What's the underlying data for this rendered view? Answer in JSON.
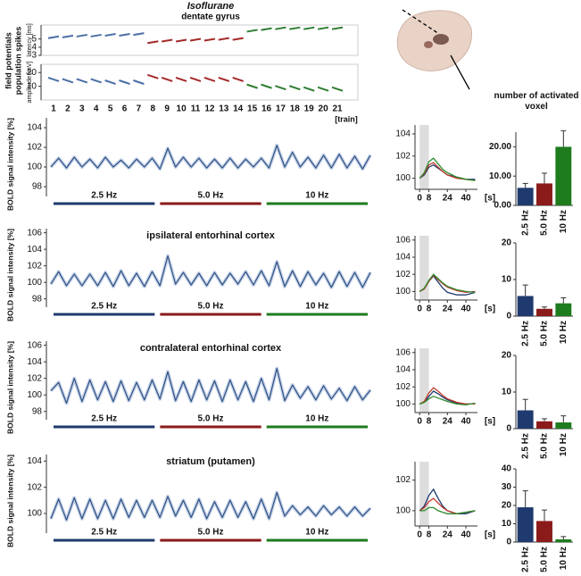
{
  "chart_data": [
    {
      "type": "ephys",
      "title": "Isoflurane",
      "subtitle": "dentate gyrus",
      "ylabel": [
        "field potentials",
        "population spikes"
      ],
      "xlabel": "[train]",
      "categories": [
        "1",
        "2",
        "3",
        "4",
        "5",
        "6",
        "7",
        "8",
        "9",
        "10",
        "11",
        "12",
        "13",
        "14",
        "15",
        "16",
        "17",
        "18",
        "19",
        "20",
        "21"
      ],
      "colors": [
        "#4a6fa5",
        "#a52a2a",
        "#2e7d32"
      ],
      "panels": [
        {
          "ylabel": "latency [ms]",
          "ylim": [
            3,
            6.7
          ],
          "yticks": [
            3,
            4,
            5
          ],
          "values": [
            5.2,
            5.3,
            5.4,
            5.4,
            5.5,
            5.5,
            5.6,
            4.6,
            4.8,
            4.8,
            4.9,
            4.9,
            5,
            5,
            6,
            6.2,
            6.3,
            6.3,
            6.3,
            6.3,
            6.3
          ]
        },
        {
          "ylabel": "amplitude [mV]",
          "ylim": [
            0,
            26
          ],
          "yticks": [
            10,
            20
          ],
          "values": [
            15,
            14,
            14,
            14,
            13,
            13,
            13,
            17,
            15,
            15,
            15,
            15,
            15,
            15,
            10,
            10,
            9,
            9,
            8,
            8,
            8
          ]
        }
      ]
    },
    {
      "type": "timecourse",
      "ylabel": "BOLD signal intensity [%]",
      "ylim": [
        97,
        105
      ],
      "yticks": [
        98,
        100,
        102,
        104
      ],
      "color": "#2f4f7f",
      "values": [
        100,
        100.9,
        99.9,
        101,
        100,
        100.8,
        99.9,
        101,
        100,
        100.7,
        99.9,
        100.8,
        100,
        100.9,
        99.8,
        101.9,
        100,
        101,
        100,
        100.9,
        99.9,
        100.8,
        99.9,
        100.9,
        99.9,
        100.8,
        100,
        100.9,
        99.9,
        102.2,
        100,
        101.5,
        100,
        101,
        99.9,
        101.2,
        99.9,
        101.3,
        99.9,
        101.1,
        99.8,
        101.2
      ],
      "segments": [
        {
          "label": "2.5 Hz",
          "color": "#1f3a6e"
        },
        {
          "label": "5.0 Hz",
          "color": "#8b1a1a"
        },
        {
          "label": "10 Hz",
          "color": "#1e7b1e"
        }
      ]
    },
    {
      "type": "line",
      "xlim": [
        -4,
        50
      ],
      "xticks": [
        0,
        8,
        24,
        40
      ],
      "xlabel": "[s]",
      "ylim": [
        99,
        104.8
      ],
      "yticks": [
        100,
        102,
        104
      ],
      "highlight": [
        0,
        8
      ],
      "x": [
        0,
        4,
        8,
        12,
        16,
        20,
        24,
        32,
        40,
        48
      ],
      "series": [
        {
          "color": "#1f3a6e",
          "values": [
            100,
            100.3,
            101,
            101.2,
            100.9,
            100.6,
            100.3,
            100.1,
            99.9,
            99.9
          ]
        },
        {
          "color": "#c0392b",
          "values": [
            100,
            100.4,
            101.2,
            101.4,
            101,
            100.6,
            100.3,
            100,
            99.9,
            99.8
          ]
        },
        {
          "color": "#2e8b2e",
          "values": [
            100,
            100.5,
            101.5,
            101.8,
            101.3,
            100.8,
            100.5,
            100.1,
            99.9,
            99.8
          ]
        }
      ]
    },
    {
      "type": "bar",
      "title": "number of activated voxel",
      "categories": [
        "2.5 Hz",
        "5.0 Hz",
        "10 Hz"
      ],
      "values": [
        6,
        7.5,
        20
      ],
      "errors": [
        1.5,
        3.5,
        5.5
      ],
      "colors": [
        "#1f3a6e",
        "#8b1a1a",
        "#1e7b1e"
      ],
      "ylim": [
        0,
        25
      ],
      "yticks": [
        {
          "value": 0,
          "label": "0.00"
        },
        {
          "value": 10,
          "label": "10.00"
        },
        {
          "value": 20,
          "label": "20.00"
        }
      ]
    },
    {
      "type": "timecourse",
      "title": "ipsilateral entorhinal cortex",
      "ylabel": "BOLD signal intensity [%]",
      "ylim": [
        97,
        106.5
      ],
      "yticks": [
        98,
        100,
        102,
        104,
        106
      ],
      "color": "#2f4f7f",
      "values": [
        99.8,
        101.3,
        99.6,
        101,
        99.6,
        101,
        99.6,
        101.2,
        99.5,
        101.4,
        99.6,
        101.1,
        99.5,
        101.3,
        99.6,
        103.2,
        99.8,
        101.2,
        99.7,
        101.1,
        99.6,
        101.2,
        99.7,
        101.1,
        99.8,
        101.3,
        99.7,
        101.4,
        99.6,
        102.5,
        99.5,
        101.4,
        99.5,
        101.3,
        99.7,
        101.1,
        99.4,
        101.3,
        99.5,
        101.2,
        99.4,
        101.2
      ],
      "segments": [
        {
          "label": "2.5 Hz",
          "color": "#1f3a6e"
        },
        {
          "label": "5.0 Hz",
          "color": "#8b1a1a"
        },
        {
          "label": "10 Hz",
          "color": "#1e7b1e"
        }
      ]
    },
    {
      "type": "line",
      "xlim": [
        -4,
        50
      ],
      "xticks": [
        0,
        8,
        24,
        40
      ],
      "xlabel": "[s]",
      "ylim": [
        99,
        106.5
      ],
      "yticks": [
        100,
        102,
        104,
        106
      ],
      "highlight": [
        0,
        8
      ],
      "x": [
        0,
        4,
        8,
        12,
        16,
        20,
        24,
        32,
        40,
        48
      ],
      "series": [
        {
          "color": "#1f3a6e",
          "values": [
            100,
            100.3,
            101.2,
            101.8,
            101.1,
            100.4,
            99.9,
            99.6,
            99.6,
            99.9
          ]
        },
        {
          "color": "#c0392b",
          "values": [
            100,
            100.3,
            101.2,
            101.9,
            101.4,
            100.9,
            100.5,
            100.1,
            99.9,
            100
          ]
        },
        {
          "color": "#2e8b2e",
          "values": [
            100,
            100.4,
            101.3,
            102,
            101.5,
            101,
            100.6,
            100.2,
            100,
            99.9
          ]
        }
      ]
    },
    {
      "type": "bar",
      "categories": [
        "2.5 Hz",
        "5.0 Hz",
        "10 Hz"
      ],
      "values": [
        5.5,
        2,
        3.5
      ],
      "errors": [
        3,
        0.5,
        1.5
      ],
      "colors": [
        "#1f3a6e",
        "#8b1a1a",
        "#1e7b1e"
      ],
      "ylim": [
        0,
        20
      ],
      "yticks": [
        0,
        10,
        20
      ]
    },
    {
      "type": "timecourse",
      "title": "contralateral entorhinal cortex",
      "ylabel": "BOLD signal intensity [%]",
      "ylim": [
        97,
        106.5
      ],
      "yticks": [
        98,
        100,
        102,
        104,
        106
      ],
      "color": "#2f4f7f",
      "values": [
        100.5,
        101.5,
        99,
        102,
        99.2,
        101.8,
        99.4,
        101.6,
        99.2,
        101.7,
        99.3,
        101.5,
        99.4,
        101.8,
        99.5,
        102.8,
        99.3,
        101.6,
        99.2,
        101.8,
        99.4,
        101.7,
        99.2,
        101.8,
        99.4,
        101.6,
        99.2,
        102,
        99.4,
        103.2,
        99.3,
        101.2,
        99.6,
        101,
        99.4,
        101.1,
        99.5,
        100.8,
        99.3,
        101,
        99.4,
        100.6
      ],
      "segments": [
        {
          "label": "2.5 Hz",
          "color": "#1f3a6e"
        },
        {
          "label": "5.0 Hz",
          "color": "#8b1a1a"
        },
        {
          "label": "10 Hz",
          "color": "#1e7b1e"
        }
      ]
    },
    {
      "type": "line",
      "xlim": [
        -4,
        50
      ],
      "xticks": [
        0,
        8,
        24,
        40
      ],
      "xlabel": "[s]",
      "ylim": [
        99,
        106.5
      ],
      "yticks": [
        100,
        102,
        104,
        106
      ],
      "highlight": [
        0,
        8
      ],
      "x": [
        0,
        4,
        8,
        12,
        16,
        20,
        24,
        32,
        40,
        48
      ],
      "series": [
        {
          "color": "#1f3a6e",
          "values": [
            100,
            100.2,
            100.9,
            101.5,
            101.2,
            100.8,
            100.5,
            100.1,
            100,
            100
          ]
        },
        {
          "color": "#c0392b",
          "values": [
            100,
            100.3,
            101.3,
            101.9,
            101.5,
            101,
            100.6,
            100.2,
            100,
            100
          ]
        },
        {
          "color": "#2e8b2e",
          "values": [
            100,
            100.2,
            100.6,
            100.9,
            100.7,
            100.5,
            100.3,
            100,
            99.9,
            100.1
          ]
        }
      ]
    },
    {
      "type": "bar",
      "categories": [
        "2.5 Hz",
        "5.0 Hz",
        "10 Hz"
      ],
      "values": [
        5,
        2,
        1.7
      ],
      "errors": [
        3,
        0.7,
        1.8
      ],
      "colors": [
        "#1f3a6e",
        "#8b1a1a",
        "#1e7b1e"
      ],
      "ylim": [
        0,
        20
      ],
      "yticks": [
        0,
        10,
        20
      ]
    },
    {
      "type": "timecourse",
      "title": "striatum (putamen)",
      "ylabel": "BOLD signal intensity [%]",
      "ylim": [
        98.5,
        104.5
      ],
      "yticks": [
        100,
        102,
        104
      ],
      "color": "#2f4f7f",
      "values": [
        99.6,
        101.1,
        99.5,
        101.2,
        99.6,
        101.1,
        99.6,
        101,
        99.6,
        101.1,
        99.7,
        101,
        99.7,
        101,
        99.7,
        101.3,
        99.8,
        101,
        99.7,
        101.1,
        99.6,
        100.9,
        99.7,
        101,
        99.7,
        100.9,
        99.6,
        101.1,
        99.6,
        101.6,
        99.8,
        100.6,
        99.9,
        100.5,
        99.8,
        100.6,
        99.9,
        100.5,
        99.8,
        100.5,
        99.8,
        100.4
      ],
      "segments": [
        {
          "label": "2.5 Hz",
          "color": "#1f3a6e"
        },
        {
          "label": "5.0 Hz",
          "color": "#8b1a1a"
        },
        {
          "label": "10 Hz",
          "color": "#1e7b1e"
        }
      ]
    },
    {
      "type": "line",
      "xlim": [
        -4,
        50
      ],
      "xticks": [
        0,
        8,
        24,
        40
      ],
      "xlabel": "[s]",
      "ylim": [
        99,
        103.2
      ],
      "yticks": [
        100,
        102
      ],
      "highlight": [
        0,
        8
      ],
      "x": [
        0,
        4,
        8,
        12,
        16,
        20,
        24,
        32,
        40,
        48
      ],
      "series": [
        {
          "color": "#1f3a6e",
          "values": [
            100,
            100.3,
            101,
            101.4,
            100.8,
            100.3,
            100,
            99.8,
            99.8,
            100
          ]
        },
        {
          "color": "#c0392b",
          "values": [
            100,
            100.2,
            100.6,
            100.8,
            100.5,
            100.2,
            100,
            99.8,
            99.9,
            100
          ]
        },
        {
          "color": "#2e8b2e",
          "values": [
            100,
            100,
            100.2,
            100.2,
            100,
            99.9,
            99.8,
            99.8,
            99.9,
            100
          ]
        }
      ]
    },
    {
      "type": "bar",
      "categories": [
        "2.5 Hz",
        "5.0 Hz",
        "10 Hz"
      ],
      "values": [
        19,
        11.5,
        1.5
      ],
      "errors": [
        9,
        6,
        1.5
      ],
      "colors": [
        "#1f3a6e",
        "#8b1a1a",
        "#1e7b1e"
      ],
      "ylim": [
        0,
        40
      ],
      "yticks": [
        0,
        10,
        20,
        30,
        40
      ]
    }
  ]
}
